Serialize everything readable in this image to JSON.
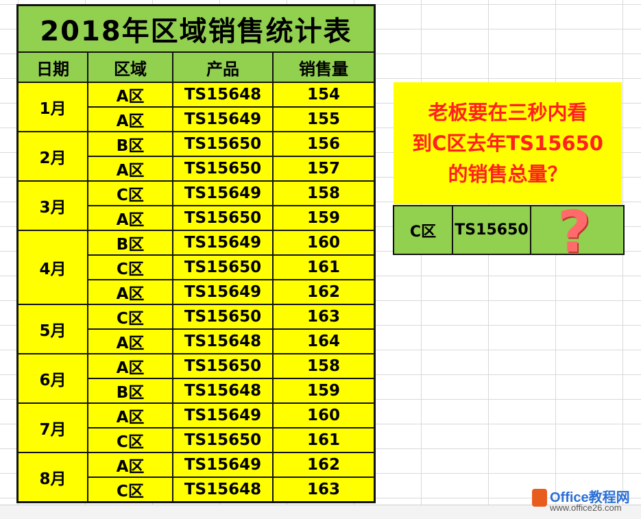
{
  "title": "2018年区域销售统计表",
  "headers": [
    "日期",
    "区域",
    "产品",
    "销售量"
  ],
  "rows": [
    {
      "month": "1月",
      "region": "A区",
      "product": "TS15648",
      "qty": "154"
    },
    {
      "month": "",
      "region": "A区",
      "product": "TS15649",
      "qty": "155"
    },
    {
      "month": "2月",
      "region": "B区",
      "product": "TS15650",
      "qty": "156"
    },
    {
      "month": "",
      "region": "A区",
      "product": "TS15650",
      "qty": "157"
    },
    {
      "month": "3月",
      "region": "C区",
      "product": "TS15649",
      "qty": "158"
    },
    {
      "month": "",
      "region": "A区",
      "product": "TS15650",
      "qty": "159"
    },
    {
      "month": "4月",
      "region": "B区",
      "product": "TS15649",
      "qty": "160"
    },
    {
      "month": "",
      "region": "C区",
      "product": "TS15650",
      "qty": "161"
    },
    {
      "month": "",
      "region": "A区",
      "product": "TS15649",
      "qty": "162"
    },
    {
      "month": "5月",
      "region": "C区",
      "product": "TS15650",
      "qty": "163"
    },
    {
      "month": "",
      "region": "A区",
      "product": "TS15648",
      "qty": "164"
    },
    {
      "month": "6月",
      "region": "A区",
      "product": "TS15650",
      "qty": "158"
    },
    {
      "month": "",
      "region": "B区",
      "product": "TS15648",
      "qty": "159"
    },
    {
      "month": "7月",
      "region": "A区",
      "product": "TS15649",
      "qty": "160"
    },
    {
      "month": "",
      "region": "C区",
      "product": "TS15650",
      "qty": "161"
    },
    {
      "month": "8月",
      "region": "A区",
      "product": "TS15649",
      "qty": "162"
    },
    {
      "month": "",
      "region": "C区",
      "product": "TS15648",
      "qty": "163"
    }
  ],
  "month_spans": [
    2,
    2,
    2,
    3,
    2,
    2,
    2,
    2
  ],
  "question": {
    "line1": "老板要在三秒内看",
    "line2": "到C区去年TS15650",
    "line3": "的销售总量？"
  },
  "answer": {
    "region": "C区",
    "product": "TS15650",
    "value": "?"
  },
  "watermark": {
    "main": "Office教程网",
    "url": "www.office26.com"
  },
  "colors": {
    "header_green": "#92d050",
    "cell_yellow": "#ffff00",
    "question_red": "#ff2020"
  }
}
